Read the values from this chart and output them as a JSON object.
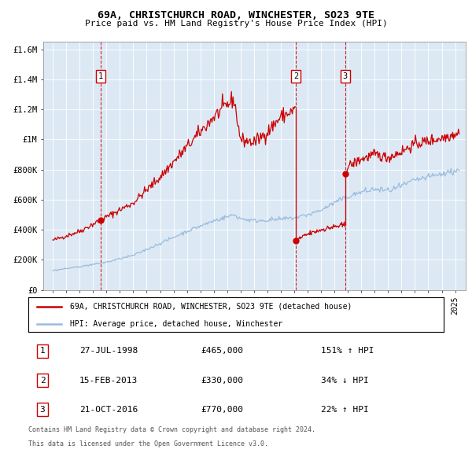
{
  "title": "69A, CHRISTCHURCH ROAD, WINCHESTER, SO23 9TE",
  "subtitle": "Price paid vs. HM Land Registry's House Price Index (HPI)",
  "ylabel_ticks": [
    "£0",
    "£200K",
    "£400K",
    "£600K",
    "£800K",
    "£1M",
    "£1.2M",
    "£1.4M",
    "£1.6M"
  ],
  "ytick_vals": [
    0,
    200000,
    400000,
    600000,
    800000,
    1000000,
    1200000,
    1400000,
    1600000
  ],
  "ylim": [
    0,
    1650000
  ],
  "plot_bg": "#dce9f5",
  "red_line_color": "#cc0000",
  "blue_line_color": "#99bbdd",
  "sale_marker_color": "#cc0000",
  "vline_color": "#cc0000",
  "sales": [
    {
      "index": 1,
      "date": "27-JUL-1998",
      "price": 465000,
      "year": 1998.57
    },
    {
      "index": 2,
      "date": "15-FEB-2013",
      "price": 330000,
      "year": 2013.12
    },
    {
      "index": 3,
      "date": "21-OCT-2016",
      "price": 770000,
      "year": 2016.8
    }
  ],
  "legend_entries": [
    "69A, CHRISTCHURCH ROAD, WINCHESTER, SO23 9TE (detached house)",
    "HPI: Average price, detached house, Winchester"
  ],
  "footnote1": "Contains HM Land Registry data © Crown copyright and database right 2024.",
  "footnote2": "This data is licensed under the Open Government Licence v3.0."
}
